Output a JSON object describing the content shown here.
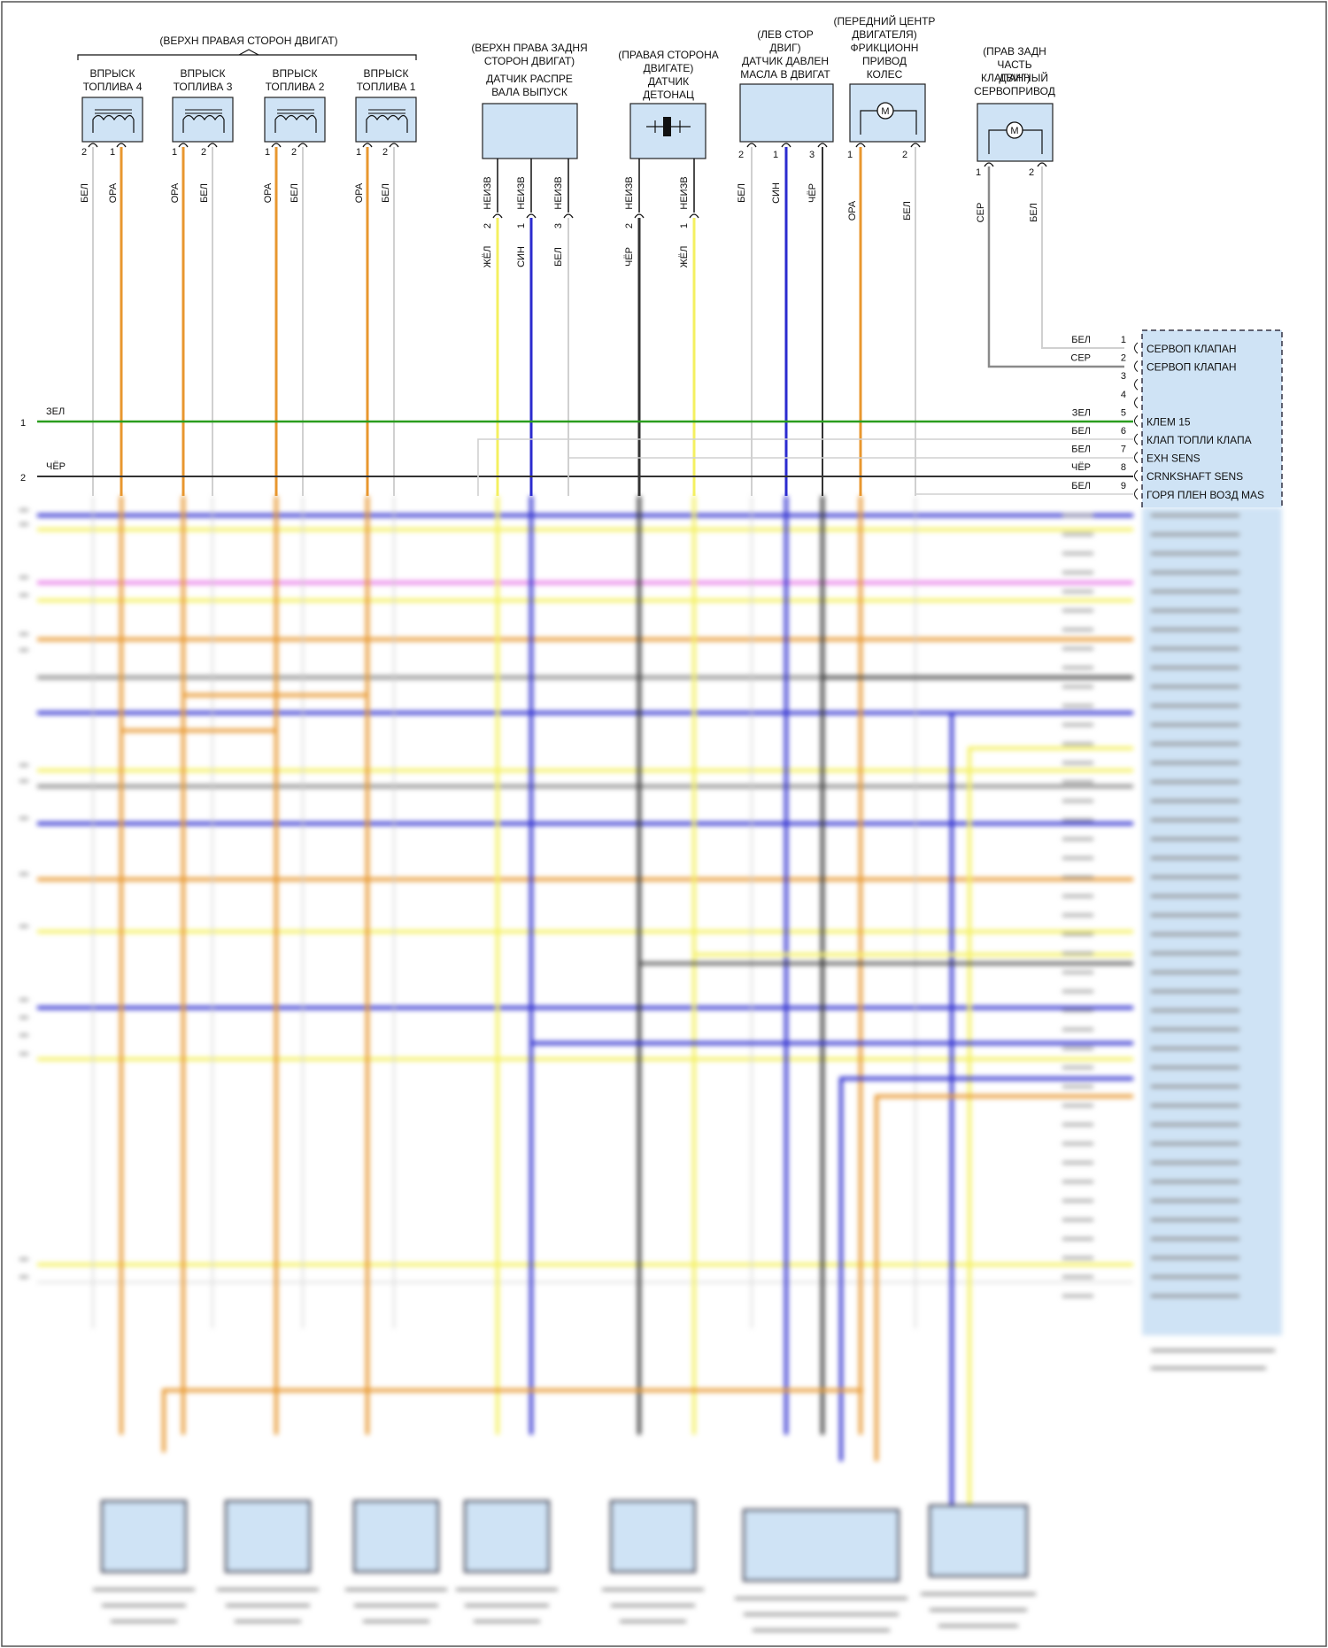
{
  "colors": {
    "green": "#2a9d1e",
    "black": "#333333",
    "orange": "#e8972f",
    "yellow": "#f4f060",
    "blue": "#2b2bcf",
    "gray": "#8a8a8a",
    "white_wire": "#d0d0d0",
    "pink": "#e87ae8",
    "box_fill": "#cfe3f5",
    "box_stroke": "#222222"
  },
  "injector_group": {
    "label": "(ВЕРХН ПРАВАЯ СТОРОН ДВИГАТ)",
    "injectors": [
      {
        "title": "ВПРЫСК ТОПЛИВА 4",
        "pins": [
          "2",
          "1"
        ],
        "wires": [
          "БЕЛ",
          "ОРА"
        ]
      },
      {
        "title": "ВПРЫСК ТОПЛИВА 3",
        "pins": [
          "1",
          "2"
        ],
        "wires": [
          "ОРА",
          "БЕЛ"
        ]
      },
      {
        "title": "ВПРЫСК ТОПЛИВА 2",
        "pins": [
          "1",
          "2"
        ],
        "wires": [
          "ОРА",
          "БЕЛ"
        ]
      },
      {
        "title": "ВПРЫСК ТОПЛИВА 1",
        "pins": [
          "1",
          "2"
        ],
        "wires": [
          "ОРА",
          "БЕЛ"
        ]
      }
    ]
  },
  "camshaft_sensor": {
    "location": "(ВЕРХН ПРАВА ЗАДНЯ СТОРОН ДВИГАТ)",
    "title": "ДАТЧИК РАСПРЕ ВАЛА ВЫПУСК",
    "pins": [
      {
        "num": "2",
        "conn": "НЕИЗВ",
        "wire": "ЖЁЛ"
      },
      {
        "num": "1",
        "conn": "НЕИЗВ",
        "wire": "СИН"
      },
      {
        "num": "3",
        "conn": "НЕИЗВ",
        "wire": "БЕЛ"
      }
    ]
  },
  "knock_sensor": {
    "location": "(ПРАВАЯ СТОРОНА ДВИГАТЕ)",
    "title": "ДАТЧИК ДЕТОНАЦ",
    "pins": [
      {
        "num": "2",
        "conn": "НЕИЗВ",
        "wire": "ЧЁР"
      },
      {
        "num": "1",
        "conn": "НЕИЗВ",
        "wire": "ЖЁЛ"
      }
    ]
  },
  "oil_pressure_sensor": {
    "location": "(ЛЕВ СТОР ДВИГ)",
    "title": "ДАТЧИК ДАВЛЕН МАСЛА В ДВИГАТ",
    "pins": [
      {
        "num": "2",
        "wire": "БЕЛ"
      },
      {
        "num": "1",
        "wire": "СИН"
      },
      {
        "num": "3",
        "wire": "ЧЁР"
      }
    ]
  },
  "wheel_drive": {
    "location": "(ПЕРЕДНИЙ ЦЕНТР ДВИГАТЕЛЯ)",
    "title": "ФРИКЦИОНН ПРИВОД КОЛЕС",
    "pins": [
      {
        "num": "1",
        "wire": "ОРА"
      },
      {
        "num": "2",
        "wire": "БЕЛ"
      }
    ]
  },
  "valve_servo": {
    "location": "(ПРАВ ЗАДН ЧАСТЬ ДВИГ)",
    "title": "КЛАПАННЫЙ СЕРВОПРИВОД",
    "pins": [
      {
        "num": "1",
        "wire": "СЕР"
      },
      {
        "num": "2",
        "wire": "БЕЛ"
      }
    ]
  },
  "motor_symbol": "M",
  "left_lines": [
    {
      "num": "1",
      "wire": "ЗЕЛ"
    },
    {
      "num": "2",
      "wire": "ЧЁР"
    }
  ],
  "ecu_pins": [
    {
      "num": "1",
      "wire": "БЕЛ",
      "label": "СЕРВОП КЛАПАН"
    },
    {
      "num": "2",
      "wire": "СЕР",
      "label": "СЕРВОП КЛАПАН"
    },
    {
      "num": "3",
      "wire": "",
      "label": ""
    },
    {
      "num": "4",
      "wire": "",
      "label": ""
    },
    {
      "num": "5",
      "wire": "ЗЕЛ",
      "label": "КЛЕМ 15"
    },
    {
      "num": "6",
      "wire": "БЕЛ",
      "label": "КЛАП ТОПЛИ КЛАПА"
    },
    {
      "num": "7",
      "wire": "БЕЛ",
      "label": "EXH SENS"
    },
    {
      "num": "8",
      "wire": "ЧЁР",
      "label": "CRNKSHAFT SENS"
    },
    {
      "num": "9",
      "wire": "БЕЛ",
      "label": "ГОРЯ ПЛЕН ВОЗД MAS"
    }
  ]
}
